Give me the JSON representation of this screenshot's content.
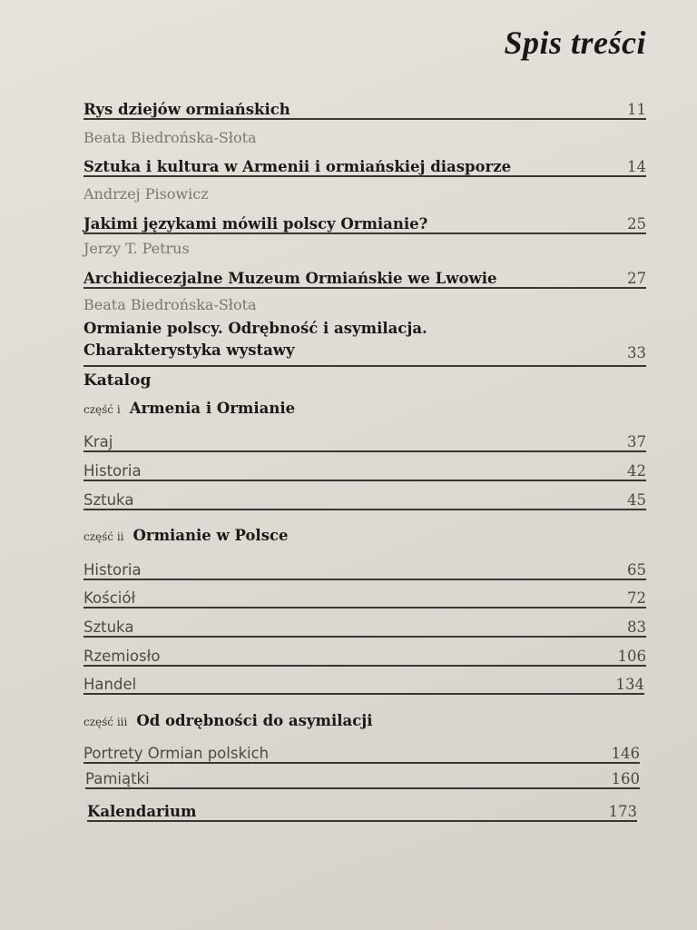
{
  "title": "Spis treści",
  "essays": [
    {
      "author": "",
      "title": "Rys dziejów ormiańskich",
      "page": "11"
    },
    {
      "author": "Beata Biedrońska-Słota",
      "title": "Sztuka i kultura w Armenii i ormiańskiej diasporze",
      "page": "14"
    },
    {
      "author": "Andrzej Pisowicz",
      "title": "Jakimi językami mówili polscy Ormianie?",
      "page": "25"
    },
    {
      "author": "Jerzy T. Petrus",
      "title": "Archidiecezjalne Muzeum Ormiańskie we Lwowie",
      "page": "27"
    },
    {
      "author": "Beata Biedrońska-Słota",
      "title_line1": "Ormianie polscy. Odrębność i asymilacja.",
      "title_line2": "Charakterystyka wystawy",
      "page": "33"
    }
  ],
  "catalog": {
    "heading": "Katalog",
    "parts": [
      {
        "label": "część i",
        "title": "Armenia i Ormianie",
        "items": [
          {
            "title": "Kraj",
            "page": "37"
          },
          {
            "title": "Historia",
            "page": "42"
          },
          {
            "title": "Sztuka",
            "page": "45"
          }
        ]
      },
      {
        "label": "część ii",
        "title": "Ormianie w Polsce",
        "items": [
          {
            "title": "Historia",
            "page": "65"
          },
          {
            "title": "Kościół",
            "page": "72"
          },
          {
            "title": "Sztuka",
            "page": "83"
          },
          {
            "title": "Rzemiosło",
            "page": "106"
          },
          {
            "title": "Handel",
            "page": "134"
          }
        ]
      },
      {
        "label": "część iii",
        "title": "Od odrębności do asymilacji",
        "items": [
          {
            "title": "Portrety Ormian polskich",
            "page": "146"
          },
          {
            "title": "Pamiątki",
            "page": "160"
          }
        ]
      }
    ]
  },
  "calendar": {
    "title": "Kalendarium",
    "page": "173"
  }
}
